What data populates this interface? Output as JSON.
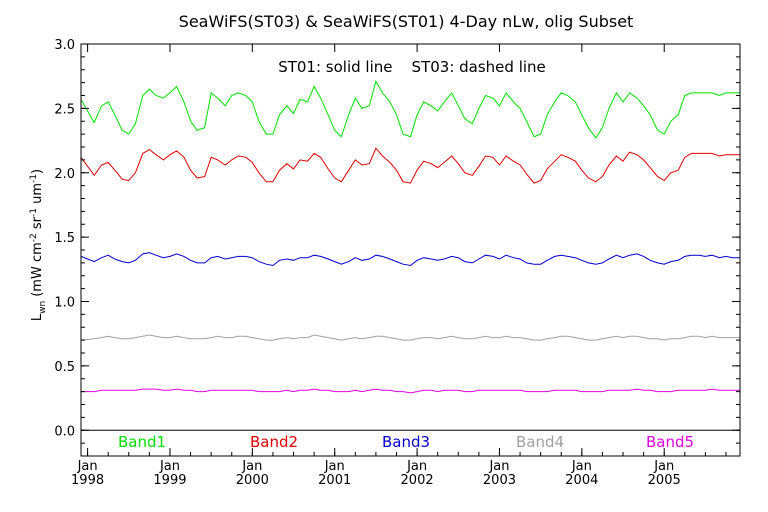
{
  "chart_data": {
    "type": "line",
    "title": "SeaWiFS(ST03) & SeaWiFS(ST01) 4-Day nLw, olig Subset",
    "ylabel_main": "L",
    "ylabel_sub": "wn",
    "ylabel_units": "(mW cm",
    "ylabel_units_sup1": "-2",
    "ylabel_units_mid": " sr",
    "ylabel_units_sup2": "-1",
    "ylabel_units_end": " um",
    "ylabel_units_sup3": "-1",
    "ylabel_units_close": ")",
    "annotation": "ST01: solid line    ST03: dashed line",
    "ylim": [
      -0.2,
      3.0
    ],
    "xlim": [
      1997.92,
      2005.92
    ],
    "y_ticks": [
      {
        "value": 0.0,
        "label": "0.0"
      },
      {
        "value": 0.5,
        "label": "0.5"
      },
      {
        "value": 1.0,
        "label": "1.0"
      },
      {
        "value": 1.5,
        "label": "1.5"
      },
      {
        "value": 2.0,
        "label": "2.0"
      },
      {
        "value": 2.5,
        "label": "2.5"
      },
      {
        "value": 3.0,
        "label": "3.0"
      }
    ],
    "x_ticks": [
      {
        "value": 1998,
        "month": "Jan",
        "year": "1998"
      },
      {
        "value": 1999,
        "month": "Jan",
        "year": "1999"
      },
      {
        "value": 2000,
        "month": "Jan",
        "year": "2000"
      },
      {
        "value": 2001,
        "month": "Jan",
        "year": "2001"
      },
      {
        "value": 2002,
        "month": "Jan",
        "year": "2002"
      },
      {
        "value": 2003,
        "month": "Jan",
        "year": "2003"
      },
      {
        "value": 2004,
        "month": "Jan",
        "year": "2004"
      },
      {
        "value": 2005,
        "month": "Jan",
        "year": "2005"
      }
    ],
    "zero_line": 0.0,
    "grid": false,
    "series": [
      {
        "name": "Band1",
        "color": "#00e000",
        "x": [
          1997.92,
          1998.08,
          1998.17,
          1998.25,
          1998.33,
          1998.42,
          1998.5,
          1998.58,
          1998.67,
          1998.75,
          1998.83,
          1998.92,
          1999.0,
          1999.08,
          1999.17,
          1999.25,
          1999.33,
          1999.42,
          1999.5,
          1999.58,
          1999.67,
          1999.75,
          1999.83,
          1999.92,
          2000.0,
          2000.08,
          2000.17,
          2000.25,
          2000.33,
          2000.42,
          2000.5,
          2000.58,
          2000.67,
          2000.75,
          2000.83,
          2000.92,
          2001.0,
          2001.08,
          2001.17,
          2001.25,
          2001.33,
          2001.42,
          2001.5,
          2001.58,
          2001.67,
          2001.75,
          2001.83,
          2001.92,
          2002.0,
          2002.08,
          2002.17,
          2002.25,
          2002.33,
          2002.42,
          2002.5,
          2002.58,
          2002.67,
          2002.75,
          2002.83,
          2002.92,
          2003.0,
          2003.08,
          2003.17,
          2003.25,
          2003.33,
          2003.42,
          2003.5,
          2003.58,
          2003.67,
          2003.75,
          2003.83,
          2003.92,
          2004.0,
          2004.08,
          2004.17,
          2004.25,
          2004.33,
          2004.42,
          2004.5,
          2004.58,
          2004.67,
          2004.75,
          2004.83,
          2004.92,
          2005.0,
          2005.08,
          2005.17,
          2005.25,
          2005.33,
          2005.42,
          2005.5,
          2005.58,
          2005.67,
          2005.75,
          2005.83,
          2005.92
        ],
        "values": [
          2.57,
          2.39,
          2.52,
          2.55,
          2.45,
          2.33,
          2.3,
          2.38,
          2.6,
          2.65,
          2.6,
          2.58,
          2.62,
          2.67,
          2.55,
          2.4,
          2.33,
          2.35,
          2.62,
          2.58,
          2.52,
          2.6,
          2.62,
          2.6,
          2.55,
          2.4,
          2.3,
          2.3,
          2.45,
          2.52,
          2.46,
          2.57,
          2.55,
          2.67,
          2.58,
          2.45,
          2.33,
          2.28,
          2.45,
          2.58,
          2.5,
          2.52,
          2.71,
          2.62,
          2.55,
          2.45,
          2.3,
          2.28,
          2.45,
          2.55,
          2.52,
          2.48,
          2.55,
          2.62,
          2.52,
          2.42,
          2.38,
          2.5,
          2.6,
          2.58,
          2.52,
          2.62,
          2.55,
          2.5,
          2.4,
          2.28,
          2.3,
          2.45,
          2.55,
          2.62,
          2.6,
          2.55,
          2.45,
          2.35,
          2.27,
          2.35,
          2.5,
          2.62,
          2.55,
          2.62,
          2.58,
          2.52,
          2.45,
          2.33,
          2.3,
          2.4,
          2.45,
          2.6,
          2.62,
          2.62,
          2.62,
          2.62,
          2.6,
          2.62,
          2.62,
          2.62
        ]
      },
      {
        "name": "Band2",
        "color": "#e00000",
        "x": [
          1997.92,
          1998.08,
          1998.17,
          1998.25,
          1998.33,
          1998.42,
          1998.5,
          1998.58,
          1998.67,
          1998.75,
          1998.83,
          1998.92,
          1999.0,
          1999.08,
          1999.17,
          1999.25,
          1999.33,
          1999.42,
          1999.5,
          1999.58,
          1999.67,
          1999.75,
          1999.83,
          1999.92,
          2000.0,
          2000.08,
          2000.17,
          2000.25,
          2000.33,
          2000.42,
          2000.5,
          2000.58,
          2000.67,
          2000.75,
          2000.83,
          2000.92,
          2001.0,
          2001.08,
          2001.17,
          2001.25,
          2001.33,
          2001.42,
          2001.5,
          2001.58,
          2001.67,
          2001.75,
          2001.83,
          2001.92,
          2002.0,
          2002.08,
          2002.17,
          2002.25,
          2002.33,
          2002.42,
          2002.5,
          2002.58,
          2002.67,
          2002.75,
          2002.83,
          2002.92,
          2003.0,
          2003.08,
          2003.17,
          2003.25,
          2003.33,
          2003.42,
          2003.5,
          2003.58,
          2003.67,
          2003.75,
          2003.83,
          2003.92,
          2004.0,
          2004.08,
          2004.17,
          2004.25,
          2004.33,
          2004.42,
          2004.5,
          2004.58,
          2004.67,
          2004.75,
          2004.83,
          2004.92,
          2005.0,
          2005.08,
          2005.17,
          2005.25,
          2005.33,
          2005.42,
          2005.5,
          2005.58,
          2005.67,
          2005.75,
          2005.83,
          2005.92
        ],
        "values": [
          2.12,
          1.98,
          2.06,
          2.08,
          2.02,
          1.95,
          1.94,
          2.0,
          2.15,
          2.18,
          2.14,
          2.1,
          2.14,
          2.17,
          2.12,
          2.02,
          1.96,
          1.97,
          2.12,
          2.1,
          2.06,
          2.1,
          2.13,
          2.12,
          2.08,
          2.0,
          1.93,
          1.93,
          2.02,
          2.07,
          2.03,
          2.1,
          2.09,
          2.15,
          2.12,
          2.03,
          1.96,
          1.93,
          2.02,
          2.1,
          2.06,
          2.07,
          2.19,
          2.13,
          2.08,
          2.02,
          1.93,
          1.92,
          2.02,
          2.09,
          2.07,
          2.04,
          2.08,
          2.13,
          2.07,
          2.0,
          1.98,
          2.05,
          2.13,
          2.12,
          2.06,
          2.13,
          2.09,
          2.06,
          1.99,
          1.92,
          1.94,
          2.03,
          2.09,
          2.14,
          2.12,
          2.09,
          2.02,
          1.96,
          1.93,
          1.97,
          2.06,
          2.13,
          2.09,
          2.16,
          2.14,
          2.1,
          2.04,
          1.97,
          1.94,
          2.0,
          2.02,
          2.12,
          2.15,
          2.15,
          2.15,
          2.15,
          2.13,
          2.14,
          2.14,
          2.14
        ]
      },
      {
        "name": "Band3",
        "color": "#0000cc",
        "x": [
          1997.92,
          1998.08,
          1998.17,
          1998.25,
          1998.33,
          1998.42,
          1998.5,
          1998.58,
          1998.67,
          1998.75,
          1998.83,
          1998.92,
          1999.0,
          1999.08,
          1999.17,
          1999.25,
          1999.33,
          1999.42,
          1999.5,
          1999.58,
          1999.67,
          1999.75,
          1999.83,
          1999.92,
          2000.0,
          2000.08,
          2000.17,
          2000.25,
          2000.33,
          2000.42,
          2000.5,
          2000.58,
          2000.67,
          2000.75,
          2000.83,
          2000.92,
          2001.0,
          2001.08,
          2001.17,
          2001.25,
          2001.33,
          2001.42,
          2001.5,
          2001.58,
          2001.67,
          2001.75,
          2001.83,
          2001.92,
          2002.0,
          2002.08,
          2002.17,
          2002.25,
          2002.33,
          2002.42,
          2002.5,
          2002.58,
          2002.67,
          2002.75,
          2002.83,
          2002.92,
          2003.0,
          2003.08,
          2003.17,
          2003.25,
          2003.33,
          2003.42,
          2003.5,
          2003.58,
          2003.67,
          2003.75,
          2003.83,
          2003.92,
          2004.0,
          2004.08,
          2004.17,
          2004.25,
          2004.33,
          2004.42,
          2004.5,
          2004.58,
          2004.67,
          2004.75,
          2004.83,
          2004.92,
          2005.0,
          2005.08,
          2005.17,
          2005.25,
          2005.33,
          2005.42,
          2005.5,
          2005.58,
          2005.67,
          2005.75,
          2005.83,
          2005.92
        ],
        "values": [
          1.35,
          1.31,
          1.34,
          1.36,
          1.33,
          1.31,
          1.3,
          1.32,
          1.37,
          1.38,
          1.36,
          1.34,
          1.35,
          1.37,
          1.35,
          1.32,
          1.3,
          1.3,
          1.34,
          1.35,
          1.33,
          1.34,
          1.35,
          1.35,
          1.34,
          1.31,
          1.29,
          1.28,
          1.32,
          1.33,
          1.32,
          1.34,
          1.34,
          1.36,
          1.35,
          1.33,
          1.31,
          1.29,
          1.31,
          1.34,
          1.32,
          1.33,
          1.36,
          1.35,
          1.33,
          1.31,
          1.29,
          1.28,
          1.32,
          1.34,
          1.33,
          1.32,
          1.33,
          1.35,
          1.34,
          1.31,
          1.3,
          1.33,
          1.36,
          1.35,
          1.33,
          1.36,
          1.34,
          1.33,
          1.3,
          1.29,
          1.29,
          1.32,
          1.35,
          1.36,
          1.35,
          1.34,
          1.32,
          1.3,
          1.29,
          1.3,
          1.33,
          1.36,
          1.34,
          1.36,
          1.37,
          1.35,
          1.32,
          1.3,
          1.29,
          1.31,
          1.32,
          1.35,
          1.36,
          1.36,
          1.35,
          1.36,
          1.34,
          1.35,
          1.34,
          1.34
        ]
      },
      {
        "name": "Band4",
        "color": "#a0a0a0",
        "x": [
          1997.92,
          1998.08,
          1998.17,
          1998.25,
          1998.33,
          1998.42,
          1998.5,
          1998.58,
          1998.67,
          1998.75,
          1998.83,
          1998.92,
          1999.0,
          1999.08,
          1999.17,
          1999.25,
          1999.33,
          1999.42,
          1999.5,
          1999.58,
          1999.67,
          1999.75,
          1999.83,
          1999.92,
          2000.0,
          2000.08,
          2000.17,
          2000.25,
          2000.33,
          2000.42,
          2000.5,
          2000.58,
          2000.67,
          2000.75,
          2000.83,
          2000.92,
          2001.0,
          2001.08,
          2001.17,
          2001.25,
          2001.33,
          2001.42,
          2001.5,
          2001.58,
          2001.67,
          2001.75,
          2001.83,
          2001.92,
          2002.0,
          2002.08,
          2002.17,
          2002.25,
          2002.33,
          2002.42,
          2002.5,
          2002.58,
          2002.67,
          2002.75,
          2002.83,
          2002.92,
          2003.0,
          2003.08,
          2003.17,
          2003.25,
          2003.33,
          2003.42,
          2003.5,
          2003.58,
          2003.67,
          2003.75,
          2003.83,
          2003.92,
          2004.0,
          2004.08,
          2004.17,
          2004.25,
          2004.33,
          2004.42,
          2004.5,
          2004.58,
          2004.67,
          2004.75,
          2004.83,
          2004.92,
          2005.0,
          2005.08,
          2005.17,
          2005.25,
          2005.33,
          2005.42,
          2005.5,
          2005.58,
          2005.67,
          2005.75,
          2005.83,
          2005.92
        ],
        "values": [
          0.7,
          0.71,
          0.72,
          0.73,
          0.72,
          0.71,
          0.71,
          0.72,
          0.73,
          0.74,
          0.73,
          0.72,
          0.72,
          0.73,
          0.72,
          0.71,
          0.71,
          0.71,
          0.72,
          0.73,
          0.72,
          0.72,
          0.73,
          0.73,
          0.72,
          0.71,
          0.7,
          0.7,
          0.71,
          0.72,
          0.71,
          0.72,
          0.72,
          0.74,
          0.73,
          0.72,
          0.71,
          0.7,
          0.71,
          0.72,
          0.71,
          0.72,
          0.73,
          0.73,
          0.72,
          0.71,
          0.7,
          0.7,
          0.71,
          0.72,
          0.72,
          0.71,
          0.72,
          0.73,
          0.72,
          0.71,
          0.71,
          0.72,
          0.73,
          0.72,
          0.72,
          0.73,
          0.72,
          0.72,
          0.71,
          0.7,
          0.7,
          0.71,
          0.72,
          0.73,
          0.73,
          0.72,
          0.71,
          0.7,
          0.7,
          0.71,
          0.72,
          0.73,
          0.72,
          0.73,
          0.73,
          0.72,
          0.71,
          0.71,
          0.7,
          0.71,
          0.71,
          0.72,
          0.73,
          0.73,
          0.72,
          0.73,
          0.72,
          0.72,
          0.72,
          0.72
        ]
      },
      {
        "name": "Band5",
        "color": "#e000e0",
        "x": [
          1997.92,
          1998.08,
          1998.17,
          1998.25,
          1998.33,
          1998.42,
          1998.5,
          1998.58,
          1998.67,
          1998.75,
          1998.83,
          1998.92,
          1999.0,
          1999.08,
          1999.17,
          1999.25,
          1999.33,
          1999.42,
          1999.5,
          1999.58,
          1999.67,
          1999.75,
          1999.83,
          1999.92,
          2000.0,
          2000.08,
          2000.17,
          2000.25,
          2000.33,
          2000.42,
          2000.5,
          2000.58,
          2000.67,
          2000.75,
          2000.83,
          2000.92,
          2001.0,
          2001.08,
          2001.17,
          2001.25,
          2001.33,
          2001.42,
          2001.5,
          2001.58,
          2001.67,
          2001.75,
          2001.83,
          2001.92,
          2002.0,
          2002.08,
          2002.17,
          2002.25,
          2002.33,
          2002.42,
          2002.5,
          2002.58,
          2002.67,
          2002.75,
          2002.83,
          2002.92,
          2003.0,
          2003.08,
          2003.17,
          2003.25,
          2003.33,
          2003.42,
          2003.5,
          2003.58,
          2003.67,
          2003.75,
          2003.83,
          2003.92,
          2004.0,
          2004.08,
          2004.17,
          2004.25,
          2004.33,
          2004.42,
          2004.5,
          2004.58,
          2004.67,
          2004.75,
          2004.83,
          2004.92,
          2005.0,
          2005.08,
          2005.17,
          2005.25,
          2005.33,
          2005.42,
          2005.5,
          2005.58,
          2005.67,
          2005.75,
          2005.83,
          2005.92
        ],
        "values": [
          0.3,
          0.3,
          0.31,
          0.31,
          0.31,
          0.31,
          0.31,
          0.31,
          0.32,
          0.32,
          0.32,
          0.31,
          0.31,
          0.32,
          0.31,
          0.31,
          0.3,
          0.3,
          0.31,
          0.31,
          0.31,
          0.31,
          0.31,
          0.31,
          0.31,
          0.3,
          0.3,
          0.3,
          0.3,
          0.31,
          0.3,
          0.31,
          0.31,
          0.32,
          0.31,
          0.31,
          0.3,
          0.3,
          0.3,
          0.31,
          0.3,
          0.31,
          0.32,
          0.31,
          0.31,
          0.3,
          0.3,
          0.29,
          0.3,
          0.31,
          0.31,
          0.3,
          0.31,
          0.31,
          0.31,
          0.3,
          0.3,
          0.31,
          0.31,
          0.31,
          0.31,
          0.31,
          0.31,
          0.31,
          0.3,
          0.3,
          0.3,
          0.3,
          0.31,
          0.31,
          0.31,
          0.31,
          0.3,
          0.3,
          0.3,
          0.3,
          0.31,
          0.31,
          0.31,
          0.31,
          0.32,
          0.31,
          0.31,
          0.3,
          0.3,
          0.3,
          0.31,
          0.31,
          0.31,
          0.31,
          0.31,
          0.32,
          0.31,
          0.31,
          0.31,
          0.31
        ]
      }
    ]
  }
}
